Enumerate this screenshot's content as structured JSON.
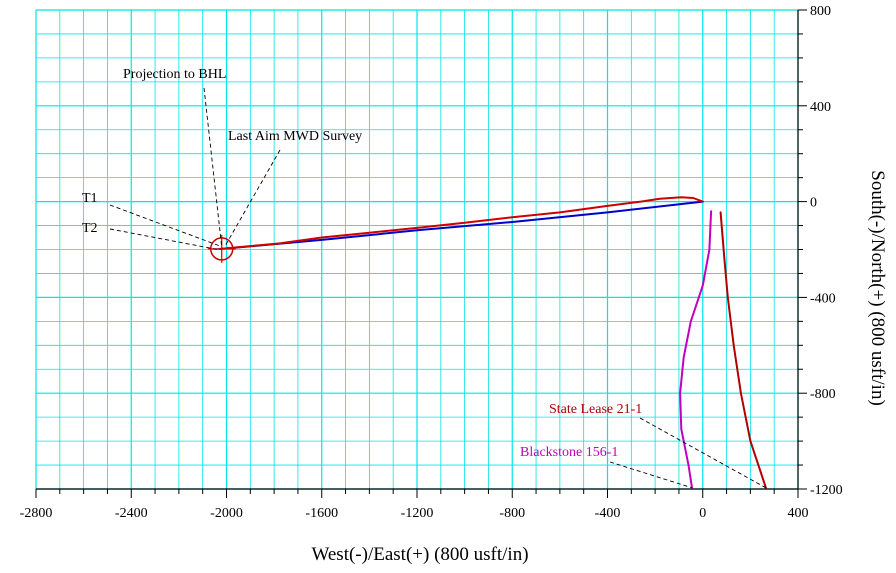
{
  "chart_data": {
    "type": "line",
    "title": "",
    "xlabel": "West(-)/East(+) (800 usft/in)",
    "ylabel": "South(-)/North(+) (800 usft/in)",
    "xlim": [
      -2800,
      400
    ],
    "ylim": [
      -1200,
      800
    ],
    "x_ticks": [
      "-2800",
      "-2400",
      "-2000",
      "-1600",
      "-1200",
      "-800",
      "-400",
      "0",
      "400"
    ],
    "y_ticks": [
      "800",
      "400",
      "0",
      "-400",
      "-800",
      "-1200"
    ],
    "x_tick_values": [
      -2800,
      -2400,
      -2000,
      -1600,
      -1200,
      -800,
      -400,
      0,
      400
    ],
    "y_tick_values": [
      800,
      400,
      0,
      -400,
      -800,
      -1200
    ],
    "grid": true,
    "grid_minor_step": 100,
    "colors": {
      "grid": "#00e5e5",
      "axis": "#000000"
    },
    "series": [
      {
        "name": "",
        "color": "#0000cc",
        "points": [
          [
            0,
            0
          ],
          [
            -400,
            -45
          ],
          [
            -800,
            -85
          ],
          [
            -1200,
            -120
          ],
          [
            -1600,
            -160
          ],
          [
            -1960,
            -192
          ],
          [
            -2030,
            -198
          ]
        ]
      },
      {
        "name": "",
        "color": "#cc0000",
        "points": [
          [
            0,
            0
          ],
          [
            -40,
            15
          ],
          [
            -90,
            18
          ],
          [
            -180,
            12
          ],
          [
            -260,
            0
          ],
          [
            -400,
            -18
          ],
          [
            -600,
            -45
          ],
          [
            -800,
            -65
          ],
          [
            -1000,
            -88
          ],
          [
            -1200,
            -110
          ],
          [
            -1400,
            -130
          ],
          [
            -1600,
            -150
          ],
          [
            -1780,
            -175
          ],
          [
            -1900,
            -186
          ],
          [
            -2030,
            -198
          ]
        ]
      },
      {
        "name": "State Lease 21-1",
        "color": "#b00000",
        "points": [
          [
            75,
            -45
          ],
          [
            90,
            -230
          ],
          [
            105,
            -400
          ],
          [
            130,
            -600
          ],
          [
            160,
            -800
          ],
          [
            200,
            -1000
          ],
          [
            265,
            -1195
          ]
        ]
      },
      {
        "name": "Blackstone 156-1",
        "color": "#c000c0",
        "points": [
          [
            35,
            -40
          ],
          [
            28,
            -200
          ],
          [
            0,
            -350
          ],
          [
            -50,
            -500
          ],
          [
            -80,
            -650
          ],
          [
            -95,
            -800
          ],
          [
            -90,
            -950
          ],
          [
            -60,
            -1100
          ],
          [
            -45,
            -1195
          ]
        ]
      }
    ],
    "targets": [
      {
        "label": "T1",
        "x": -2020,
        "y": -195
      },
      {
        "label": "T2",
        "x": -2020,
        "y": -200
      }
    ],
    "annotations": [
      {
        "text": "Projection to BHL",
        "x": -2020,
        "y": -195
      },
      {
        "text": "Last Aim MWD Survey",
        "x": -2020,
        "y": -195
      },
      {
        "text": "T1",
        "x": -2020,
        "y": -195
      },
      {
        "text": "T2",
        "x": -2020,
        "y": -200
      },
      {
        "text": "State Lease 21-1",
        "x": 265,
        "y": -1195
      },
      {
        "text": "Blackstone 156-1",
        "x": -45,
        "y": -1195
      }
    ]
  }
}
